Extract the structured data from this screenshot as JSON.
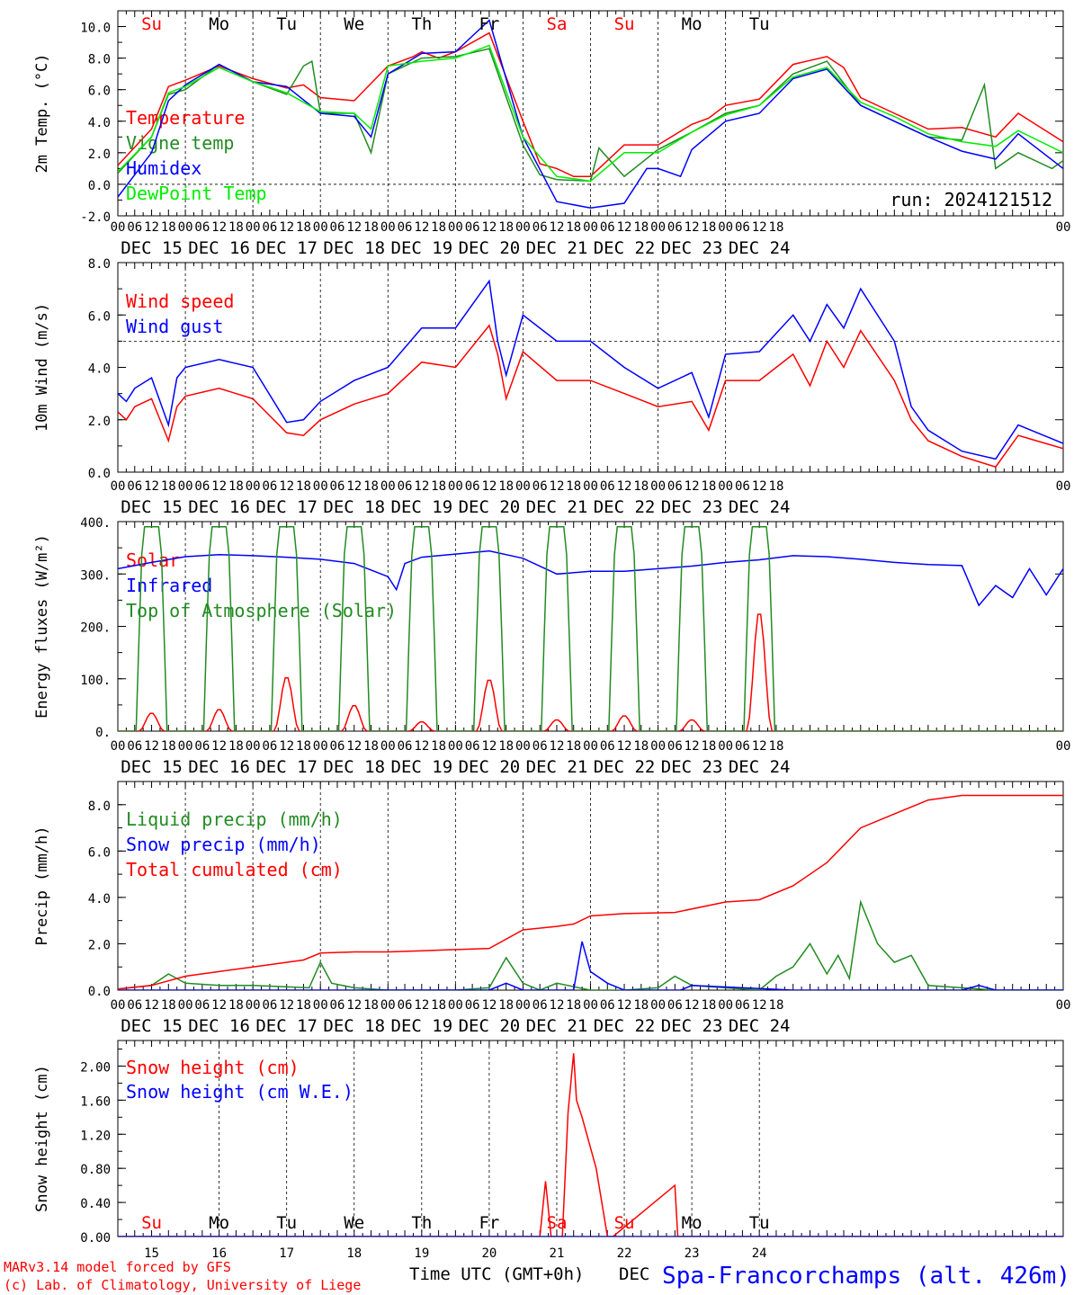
{
  "run_label": "run: 2024121512",
  "day_names": [
    "Su",
    "Mo",
    "Tu",
    "We",
    "Th",
    "Fr",
    "Sa",
    "Su",
    "Mo",
    "Tu"
  ],
  "day_colors": [
    "#ff0000",
    "#000000",
    "#000000",
    "#000000",
    "#000000",
    "#000000",
    "#ff0000",
    "#ff0000",
    "#000000",
    "#000000"
  ],
  "date_labels": [
    "DEC 15",
    "DEC 16",
    "DEC 17",
    "DEC 18",
    "DEC 19",
    "DEC 20",
    "DEC 21",
    "DEC 22",
    "DEC 23",
    "DEC 24"
  ],
  "hour_labels": [
    "00",
    "06",
    "12",
    "18"
  ],
  "day_numbers": [
    "15",
    "16",
    "17",
    "18",
    "19",
    "20",
    "21",
    "22",
    "23",
    "24"
  ],
  "footer": {
    "model": "MARv3.14 model forced by GFS",
    "credit": "(c) Lab. of Climatology, University of Liege",
    "xlabel": "Time UTC (GMT+0h)",
    "xlabel_suffix": "DEC",
    "station": "Spa-Francorchamps (alt. 426m)"
  },
  "colors": {
    "red": "#ff0000",
    "green": "#228b22",
    "blue": "#0000ff",
    "lightgreen": "#00ee00",
    "black": "#000000"
  },
  "chart_data": [
    {
      "type": "line",
      "ylabel": "2m Temp. (°C)",
      "ylim": [
        -2,
        11
      ],
      "yticks": [
        "-2.0",
        "0.0",
        "2.0",
        "4.0",
        "6.0",
        "8.0",
        "10.0"
      ],
      "ytick_values": [
        -2,
        0,
        2,
        4,
        6,
        8,
        10
      ],
      "reference_line": 0,
      "x_unit": "hours since DEC 15 00 UTC",
      "series": [
        {
          "name": "Temperature",
          "color": "#ff0000",
          "x": [
            0,
            12,
            18,
            24,
            36,
            48,
            60,
            66,
            72,
            84,
            96,
            105,
            108,
            114,
            120,
            132,
            144,
            150,
            156,
            162,
            168,
            180,
            192,
            204,
            210,
            216,
            228,
            228,
            240,
            252,
            258,
            264,
            276,
            288,
            300,
            312,
            320,
            336
          ],
          "y": [
            1.2,
            3.5,
            6.2,
            6.6,
            7.5,
            6.7,
            6.1,
            6.3,
            5.5,
            5.3,
            7.5,
            8.1,
            8.4,
            8.0,
            8.4,
            9.6,
            4.0,
            1.3,
            1.0,
            0.5,
            0.5,
            2.5,
            2.5,
            3.8,
            4.2,
            5.0,
            5.4,
            5.4,
            7.6,
            8.1,
            7.4,
            5.5,
            4.5,
            3.5,
            3.6,
            3.0,
            4.5,
            2.7
          ]
        },
        {
          "name": "Vigne temp",
          "color": "#228b22",
          "x": [
            0,
            12,
            18,
            24,
            36,
            48,
            60,
            66,
            69,
            72,
            84,
            90,
            96,
            108,
            120,
            132,
            144,
            150,
            156,
            168,
            171,
            180,
            192,
            204,
            216,
            228,
            240,
            252,
            264,
            276,
            288,
            300,
            308,
            312,
            320,
            332,
            336
          ],
          "y": [
            0.7,
            3.0,
            5.7,
            6.0,
            7.6,
            6.5,
            5.7,
            7.5,
            7.8,
            4.5,
            4.5,
            2.0,
            7.0,
            8.0,
            8.1,
            8.6,
            2.5,
            0.6,
            0.3,
            0.2,
            2.3,
            0.5,
            2.2,
            3.3,
            4.5,
            5.0,
            7.0,
            7.8,
            5.0,
            4.0,
            3.0,
            2.8,
            6.3,
            1.0,
            2.0,
            1.0,
            1.5
          ]
        },
        {
          "name": "Humidex",
          "color": "#0000ff",
          "x": [
            0,
            12,
            18,
            24,
            36,
            48,
            60,
            72,
            84,
            90,
            96,
            108,
            120,
            132,
            144,
            156,
            168,
            180,
            188,
            192,
            200,
            204,
            216,
            228,
            240,
            252,
            264,
            276,
            288,
            300,
            312,
            320,
            336
          ],
          "y": [
            -0.8,
            2.0,
            5.3,
            6.3,
            7.6,
            6.5,
            6.2,
            4.5,
            4.3,
            3.0,
            7.0,
            8.3,
            8.4,
            10.4,
            3.0,
            -1.1,
            -1.5,
            -1.2,
            1.0,
            1.0,
            0.5,
            2.2,
            4.0,
            4.5,
            6.7,
            7.3,
            5.0,
            4.0,
            3.0,
            2.1,
            1.6,
            3.2,
            1.0
          ]
        },
        {
          "name": "DewPoint Temp",
          "color": "#00ee00",
          "x": [
            0,
            12,
            18,
            24,
            36,
            48,
            60,
            72,
            84,
            90,
            96,
            108,
            120,
            132,
            144,
            156,
            168,
            180,
            192,
            204,
            216,
            228,
            240,
            252,
            264,
            276,
            288,
            300,
            312,
            320,
            336
          ],
          "y": [
            0.8,
            3.0,
            5.8,
            6.2,
            7.4,
            6.5,
            5.8,
            4.6,
            4.5,
            3.5,
            7.5,
            7.8,
            8.0,
            8.8,
            3.0,
            0.5,
            0.2,
            2.0,
            2.0,
            3.3,
            4.4,
            5.0,
            6.8,
            7.4,
            5.2,
            4.3,
            3.2,
            2.7,
            2.4,
            3.4,
            2.0
          ]
        }
      ]
    },
    {
      "type": "line",
      "ylabel": "10m Wind (m/s)",
      "ylim": [
        0,
        8
      ],
      "yticks": [
        "0.0",
        "2.0",
        "4.0",
        "6.0",
        "8.0"
      ],
      "ytick_values": [
        0,
        2,
        4,
        6,
        8
      ],
      "reference_line": 5,
      "series": [
        {
          "name": "Wind speed",
          "color": "#ff0000",
          "x": [
            0,
            3,
            6,
            12,
            18,
            21,
            24,
            36,
            48,
            60,
            66,
            72,
            84,
            96,
            108,
            120,
            132,
            135,
            138,
            144,
            156,
            168,
            180,
            192,
            204,
            210,
            216,
            228,
            240,
            246,
            252,
            258,
            264,
            276,
            282,
            288,
            300,
            312,
            320,
            336
          ],
          "y": [
            2.3,
            2.0,
            2.5,
            2.8,
            1.2,
            2.5,
            2.9,
            3.2,
            2.8,
            1.5,
            1.4,
            2.0,
            2.6,
            3.0,
            4.2,
            4.0,
            5.6,
            4.5,
            2.8,
            4.6,
            3.5,
            3.5,
            3.0,
            2.5,
            2.7,
            1.6,
            3.5,
            3.5,
            4.5,
            3.3,
            5.0,
            4.0,
            5.4,
            3.5,
            2.0,
            1.2,
            0.6,
            0.2,
            1.4,
            0.9
          ]
        },
        {
          "name": "Wind gust",
          "color": "#0000ff",
          "x": [
            0,
            3,
            6,
            12,
            18,
            21,
            24,
            36,
            48,
            60,
            66,
            72,
            84,
            96,
            108,
            120,
            132,
            135,
            138,
            144,
            156,
            168,
            180,
            192,
            204,
            210,
            216,
            228,
            240,
            246,
            252,
            258,
            264,
            276,
            282,
            288,
            300,
            312,
            320,
            336
          ],
          "y": [
            3.0,
            2.7,
            3.2,
            3.6,
            1.8,
            3.6,
            4.0,
            4.3,
            4.0,
            1.9,
            2.0,
            2.7,
            3.5,
            4.0,
            5.5,
            5.5,
            7.3,
            5.0,
            3.7,
            6.0,
            5.0,
            5.0,
            4.0,
            3.2,
            3.8,
            2.1,
            4.5,
            4.6,
            6.0,
            5.0,
            6.4,
            5.5,
            7.0,
            5.0,
            2.5,
            1.6,
            0.8,
            0.5,
            1.8,
            1.1
          ]
        }
      ]
    },
    {
      "type": "line",
      "ylabel": "Energy fluxes (W/m²)",
      "ylim": [
        0,
        400
      ],
      "yticks": [
        "0.",
        "100.",
        "200.",
        "300.",
        "400."
      ],
      "ytick_values": [
        0,
        100,
        200,
        300,
        400
      ],
      "series": [
        {
          "name": "Solar",
          "color": "#ff0000",
          "peaks": [
            35,
            42,
            105,
            50,
            18,
            100,
            22,
            30,
            22,
            230
          ],
          "peak_hour_offset": 12
        },
        {
          "name": "Infrared",
          "color": "#0000ff",
          "x": [
            0,
            12,
            24,
            36,
            48,
            60,
            72,
            84,
            96,
            99,
            102,
            108,
            120,
            132,
            144,
            156,
            168,
            180,
            192,
            204,
            216,
            228,
            240,
            252,
            264,
            276,
            288,
            300,
            306,
            312,
            318,
            324,
            330,
            336
          ],
          "y": [
            310,
            322,
            333,
            337,
            335,
            332,
            328,
            320,
            295,
            270,
            320,
            332,
            338,
            344,
            330,
            300,
            305,
            305,
            310,
            315,
            322,
            327,
            335,
            333,
            328,
            322,
            318,
            316,
            240,
            278,
            255,
            310,
            260,
            310
          ]
        },
        {
          "name": "Top of Atmosphere (Solar)",
          "color": "#228b22",
          "peaks": [
            390,
            390,
            390,
            390,
            390,
            390,
            390,
            390,
            390,
            390
          ],
          "peak_hour_offset": 12
        }
      ]
    },
    {
      "type": "line",
      "ylabel": "Precip (mm/h)",
      "ylim": [
        0,
        9
      ],
      "yticks": [
        "0.0",
        "2.0",
        "4.0",
        "6.0",
        "8.0"
      ],
      "ytick_values": [
        0,
        2,
        4,
        6,
        8
      ],
      "series": [
        {
          "name": "Liquid precip (mm/h)",
          "color": "#228b22",
          "x": [
            0,
            12,
            18,
            24,
            36,
            48,
            68,
            72,
            76,
            84,
            96,
            120,
            132,
            138,
            144,
            150,
            156,
            168,
            180,
            192,
            198,
            204,
            216,
            228,
            234,
            240,
            246,
            252,
            256,
            260,
            264,
            270,
            276,
            282,
            288,
            300,
            312,
            336
          ],
          "y": [
            0.05,
            0.2,
            0.7,
            0.3,
            0.2,
            0.2,
            0.1,
            1.2,
            0.3,
            0.1,
            0.0,
            0.0,
            0.1,
            1.4,
            0.3,
            0.0,
            0.3,
            0.0,
            0.0,
            0.1,
            0.6,
            0.2,
            0.1,
            0.0,
            0.6,
            1.0,
            2.0,
            0.7,
            1.5,
            0.5,
            3.8,
            2.0,
            1.2,
            1.5,
            0.2,
            0.1,
            0.0,
            0.0
          ]
        },
        {
          "name": "Snow precip (mm/h)",
          "color": "#0000ff",
          "x": [
            0,
            132,
            138,
            144,
            162,
            165,
            168,
            174,
            180,
            200,
            204,
            240,
            300,
            306,
            312,
            336
          ],
          "y": [
            0.0,
            0.0,
            0.3,
            0.0,
            0.0,
            2.1,
            0.8,
            0.3,
            0.0,
            0.0,
            0.2,
            0.0,
            0.0,
            0.2,
            0.0,
            0.0
          ]
        },
        {
          "name": "Total cumulated (cm)",
          "color": "#ff0000",
          "x": [
            0,
            12,
            24,
            48,
            66,
            72,
            84,
            96,
            108,
            132,
            144,
            156,
            162,
            168,
            180,
            198,
            216,
            228,
            240,
            252,
            264,
            276,
            288,
            300,
            312,
            336
          ],
          "y": [
            0.05,
            0.2,
            0.6,
            1.0,
            1.3,
            1.6,
            1.65,
            1.65,
            1.7,
            1.8,
            2.6,
            2.75,
            2.85,
            3.2,
            3.3,
            3.35,
            3.8,
            3.9,
            4.5,
            5.5,
            7.0,
            7.6,
            8.2,
            8.4,
            8.4,
            8.4
          ]
        }
      ]
    },
    {
      "type": "line",
      "ylabel": "Snow height (cm)",
      "ylim": [
        0,
        2.3
      ],
      "yticks": [
        "0.00",
        "0.40",
        "0.80",
        "1.20",
        "1.60",
        "2.00"
      ],
      "ytick_values": [
        0,
        0.4,
        0.8,
        1.2,
        1.6,
        2.0
      ],
      "series": [
        {
          "name": "Snow height (cm)",
          "color": "#ff0000",
          "x": [
            0,
            150,
            152,
            154,
            158,
            160,
            162,
            163,
            165,
            170,
            174,
            176,
            198,
            199,
            201,
            336
          ],
          "y": [
            0,
            0,
            0.65,
            0,
            0,
            1.45,
            2.15,
            1.6,
            1.4,
            0.8,
            0,
            0,
            0.6,
            0,
            0,
            0
          ]
        },
        {
          "name": "Snow height (cm W.E.)",
          "color": "#0000ff",
          "x": [
            0,
            336
          ],
          "y": [
            0,
            0
          ]
        }
      ]
    }
  ]
}
